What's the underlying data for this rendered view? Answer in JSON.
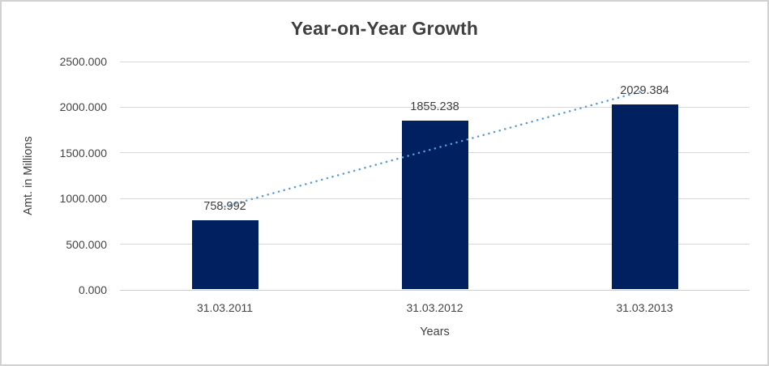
{
  "window": {
    "background": "#ffffff",
    "border_color": "#d2d2d2"
  },
  "chart_data": {
    "type": "bar",
    "title": "Year-on-Year Growth",
    "xlabel": "Years",
    "ylabel": "Amt. in Millions",
    "categories": [
      "31.03.2011",
      "31.03.2012",
      "31.03.2013"
    ],
    "values": [
      758.992,
      1855.238,
      2029.384
    ],
    "value_labels": [
      "758.992",
      "1855.238",
      "2029.384"
    ],
    "yticks": [
      "0.000",
      "500.000",
      "1000.000",
      "1500.000",
      "2000.000",
      "2500.000"
    ],
    "ylim": [
      0,
      2500
    ],
    "grid": true,
    "legend": "none",
    "bar_color": "#002060",
    "text_color": "#3f3f3f",
    "gridline_color": "#d9d9d9",
    "trendline": {
      "type": "linear",
      "style": "dotted",
      "color": "#5b9bd5"
    }
  }
}
